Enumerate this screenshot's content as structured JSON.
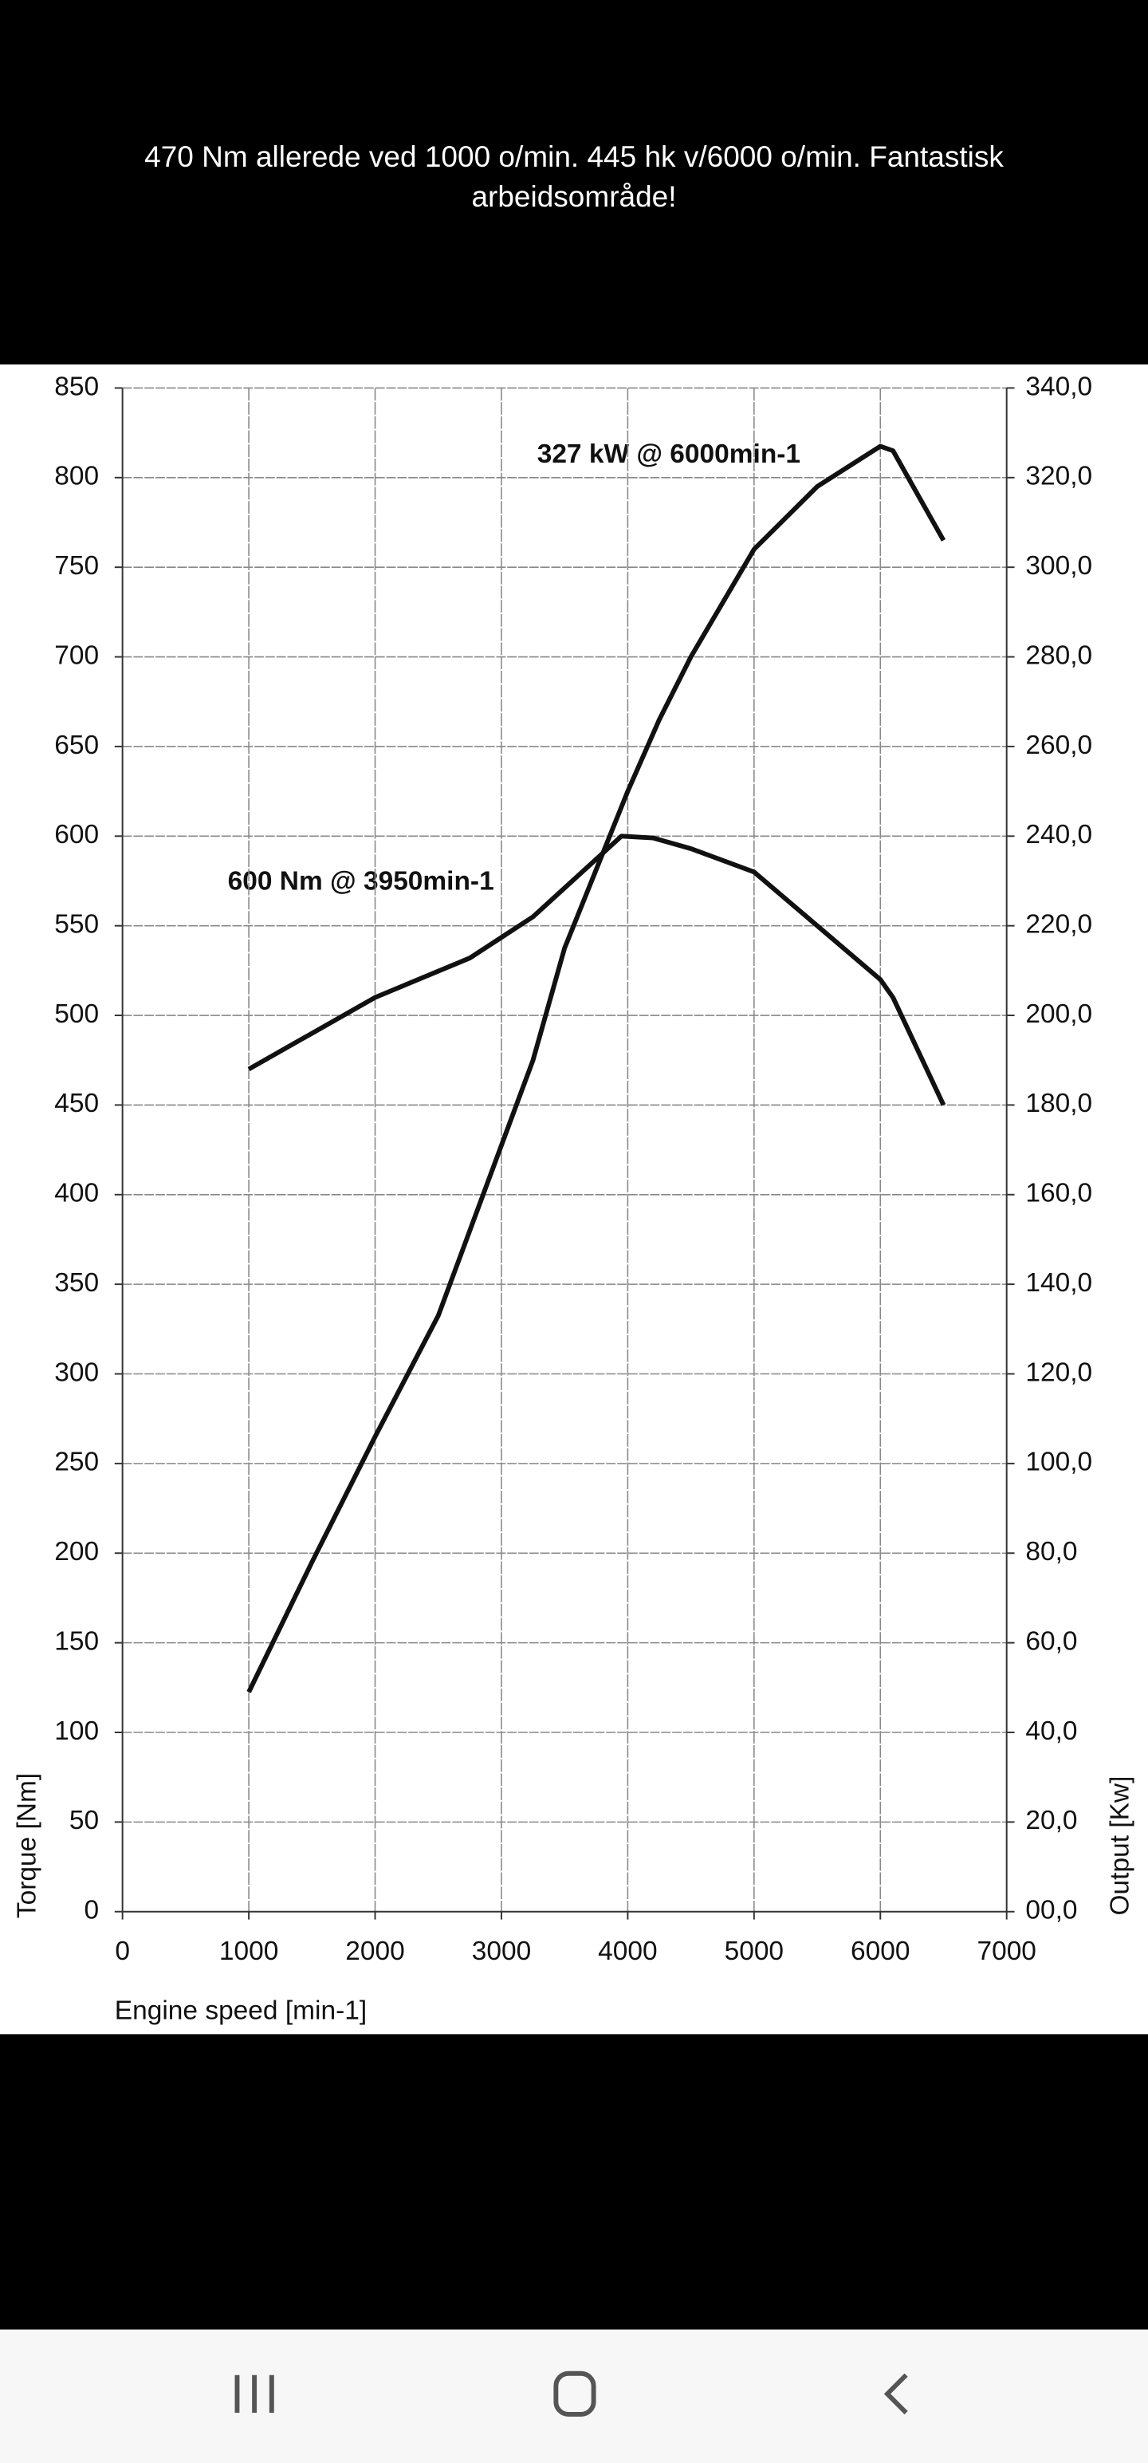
{
  "caption": "470 Nm allerede ved 1000 o/min. 445 hk v/6000 o/min. Fantastisk arbeidsområde!",
  "chart_data": {
    "type": "line",
    "xlabel": "Engine speed [min-1]",
    "ylabel": "Torque [Nm]",
    "y2label": "Output [Kw]",
    "annotations": [
      {
        "text": "327 kW @ 6000min-1"
      },
      {
        "text": "600 Nm @ 3950min-1"
      }
    ],
    "xlim": [
      0,
      7000
    ],
    "xticks": [
      0,
      1000,
      2000,
      3000,
      4000,
      5000,
      6000,
      7000
    ],
    "ylim": [
      0,
      850
    ],
    "yticks": [
      0,
      50,
      100,
      150,
      200,
      250,
      300,
      350,
      400,
      450,
      500,
      550,
      600,
      650,
      700,
      750,
      800,
      850
    ],
    "y2lim": [
      0,
      340
    ],
    "y2ticks": [
      {
        "value": 0,
        "label": "00,0"
      },
      {
        "value": 20,
        "label": "20,0"
      },
      {
        "value": 40,
        "label": "40,0"
      },
      {
        "value": 60,
        "label": "60,0"
      },
      {
        "value": 80,
        "label": "80,0"
      },
      {
        "value": 100,
        "label": "100,0"
      },
      {
        "value": 120,
        "label": "120,0"
      },
      {
        "value": 140,
        "label": "140,0"
      },
      {
        "value": 160,
        "label": "160,0"
      },
      {
        "value": 180,
        "label": "180,0"
      },
      {
        "value": 200,
        "label": "200,0"
      },
      {
        "value": 220,
        "label": "220,0"
      },
      {
        "value": 240,
        "label": "240,0"
      },
      {
        "value": 260,
        "label": "260,0"
      },
      {
        "value": 280,
        "label": "280,0"
      },
      {
        "value": 300,
        "label": "300,0"
      },
      {
        "value": 320,
        "label": "320,0"
      },
      {
        "value": 340,
        "label": "340,0"
      }
    ],
    "grid": true,
    "series": [
      {
        "color": "#111111",
        "x": [
          1000,
          1500,
          2000,
          2750,
          3250,
          3950,
          4200,
          4500,
          5000,
          5500,
          6000,
          6100,
          6500
        ],
        "values": [
          470,
          490,
          510,
          532,
          555,
          600,
          599,
          593,
          580,
          550,
          520,
          510,
          450
        ]
      },
      {
        "color": "#111111",
        "axis": "y2",
        "x": [
          1000,
          1500,
          2000,
          2500,
          2750,
          3250,
          3500,
          4000,
          4250,
          4500,
          5000,
          5500,
          6000,
          6100,
          6500
        ],
        "values": [
          49,
          78,
          106,
          133,
          152,
          190,
          215,
          250,
          266,
          280,
          304,
          318,
          327,
          326,
          306
        ]
      }
    ]
  }
}
